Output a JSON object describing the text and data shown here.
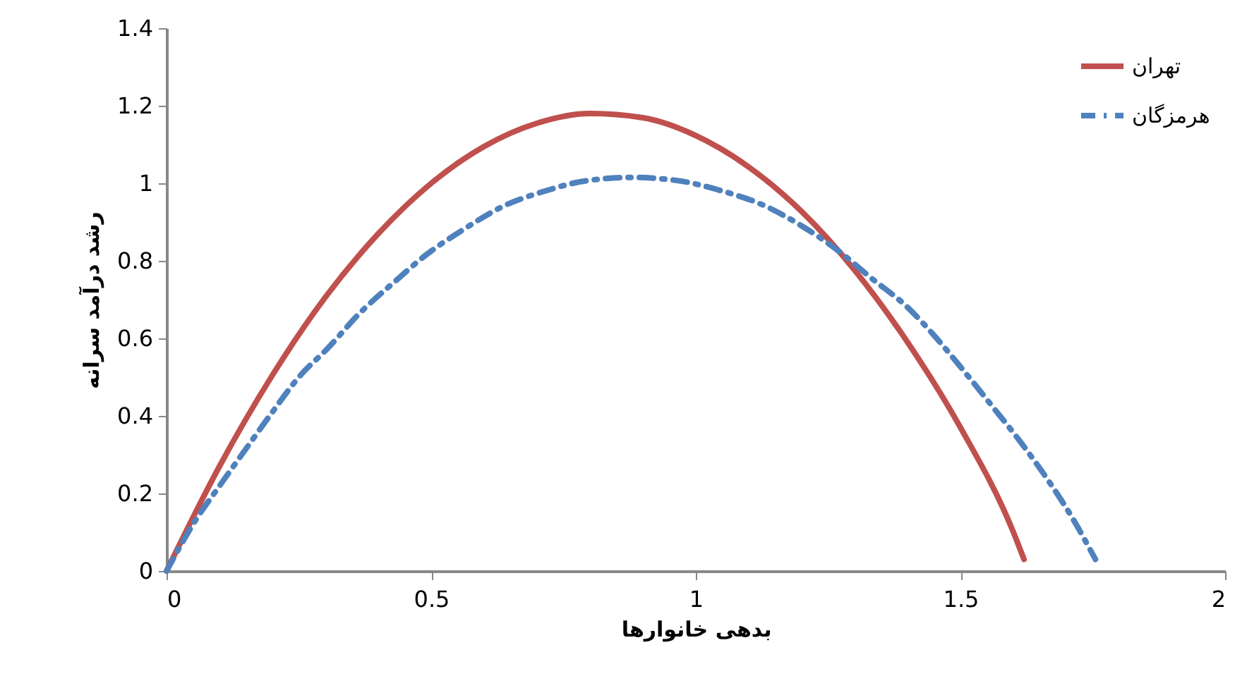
{
  "chart_data": {
    "type": "line",
    "xlabel": "بدهی خانوارها",
    "ylabel": "رشد درآمد سرانه",
    "xlim": [
      0,
      2
    ],
    "xticks": [
      0,
      0.5,
      1,
      1.5,
      2
    ],
    "ylim": [
      0,
      1.4
    ],
    "yticks": [
      0,
      0.2,
      0.4,
      0.6,
      0.8,
      1,
      1.2,
      1.4
    ],
    "grid": false,
    "legend": "top right",
    "series": [
      {
        "name": "تهران",
        "color": "#c0504d",
        "line_style": "solid",
        "x": [
          0,
          0.1,
          0.2,
          0.3,
          0.4,
          0.5,
          0.6,
          0.7,
          0.8,
          0.9,
          1,
          1.1,
          1.2,
          1.3,
          1.4,
          1.5,
          1.6,
          1.62
        ],
        "values": [
          0,
          0.27,
          0.505,
          0.706,
          0.87,
          1,
          1.095,
          1.155,
          1.18,
          1.169,
          1.123,
          1.042,
          0.927,
          0.776,
          0.59,
          0.37,
          0.1,
          0.03
        ]
      },
      {
        "name": "هرمزگان",
        "color": "#4f81bd",
        "line_style": "dashed",
        "x": [
          0,
          0.053,
          0.103,
          0.15,
          0.2,
          0.25,
          0.305,
          0.365,
          0.43,
          0.49,
          0.56,
          0.635,
          0.715,
          0.795,
          0.88,
          0.965,
          1.05,
          1.125,
          1.2,
          1.27,
          1.33,
          1.4,
          1.455,
          1.51,
          1.56,
          1.615,
          1.665,
          1.71,
          1.755
        ],
        "values": [
          0,
          0.127,
          0.225,
          0.315,
          0.41,
          0.5,
          0.575,
          0.665,
          0.745,
          0.815,
          0.88,
          0.94,
          0.98,
          1.007,
          1.015,
          1.007,
          0.98,
          0.945,
          0.89,
          0.825,
          0.757,
          0.68,
          0.6,
          0.51,
          0.425,
          0.33,
          0.235,
          0.14,
          0.03
        ]
      }
    ]
  }
}
